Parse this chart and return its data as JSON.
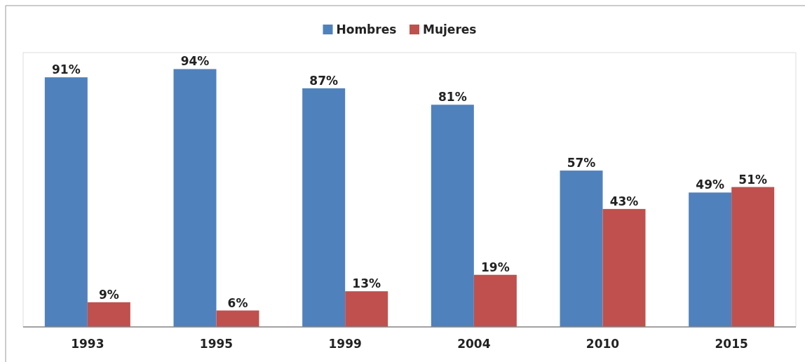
{
  "chart_data": {
    "type": "bar",
    "categories": [
      "1993",
      "1995",
      "1999",
      "2004",
      "2010",
      "2015"
    ],
    "series": [
      {
        "name": "Hombres",
        "color": "#4f81bd",
        "values": [
          91,
          94,
          87,
          81,
          57,
          49
        ],
        "value_labels": [
          "91%",
          "94%",
          "87%",
          "81%",
          "57%",
          "49%"
        ]
      },
      {
        "name": "Mujeres",
        "color": "#c0504d",
        "values": [
          9,
          6,
          13,
          19,
          43,
          51
        ],
        "value_labels": [
          "9%",
          "6%",
          "13%",
          "19%",
          "43%",
          "51%"
        ]
      }
    ],
    "ylim": [
      0,
      100
    ],
    "tick_labels": "x",
    "legend": "top",
    "grid": false
  }
}
